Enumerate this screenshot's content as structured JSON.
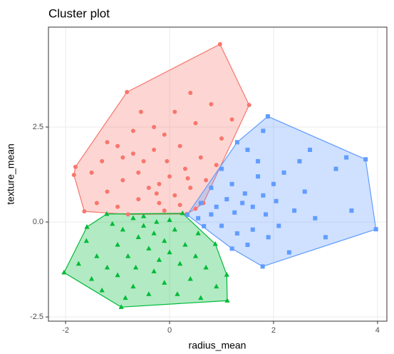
{
  "chart_data": {
    "type": "cluster",
    "title": "Cluster plot",
    "x_label": "radius_mean",
    "y_label": "texture_mean",
    "xlim": [
      -2.33,
      4.18
    ],
    "ylim": [
      -2.61,
      5.13
    ],
    "xticks": [
      -2,
      0,
      2,
      4
    ],
    "yticks": [
      -2.5,
      {
        "value": 0,
        "label": "0.0"
      },
      2.5
    ],
    "grid": true,
    "series": [
      {
        "color": "#F8766D",
        "shape": "circle",
        "x": [
          0.97,
          1.53,
          0.33,
          -1.64,
          -1.84,
          -1.81,
          -0.82,
          0.4,
          -1.2,
          -1.0,
          -0.7,
          -0.7,
          -0.3,
          -0.1,
          0.2,
          0.5,
          0.8,
          0.6,
          0.3,
          0.0,
          -0.2,
          -0.4,
          -0.6,
          -0.9,
          -1.2,
          -1.4,
          -1.0,
          -0.6,
          -0.2,
          0.1,
          0.4,
          0.7,
          0.9,
          -0.5,
          -0.3,
          -1.5,
          -0.1,
          0.2,
          -0.8,
          -1.3,
          0.65,
          1.0,
          -0.05,
          -0.55,
          -0.9,
          0.35,
          -0.25,
          0.5,
          1.2,
          0.1
        ],
        "y": [
          4.68,
          3.08,
          0.21,
          0.28,
          1.24,
          1.45,
          3.42,
          3.4,
          2.1,
          2.0,
          2.4,
          1.8,
          2.5,
          2.3,
          2.0,
          2.6,
          3.1,
          1.7,
          1.4,
          1.2,
          1.0,
          0.9,
          1.3,
          1.1,
          0.8,
          0.5,
          0.4,
          0.6,
          0.5,
          0.7,
          0.9,
          1.1,
          1.5,
          1.6,
          1.9,
          1.3,
          0.3,
          0.45,
          0.2,
          1.6,
          0.5,
          2.2,
          1.6,
          2.9,
          1.7,
          1.15,
          0.75,
          0.35,
          2.7,
          2.9
        ]
      },
      {
        "color": "#619CFF",
        "shape": "square",
        "x": [
          1.89,
          3.77,
          3.97,
          1.79,
          0.66,
          0.34,
          1.8,
          1.5,
          1.3,
          1.0,
          0.8,
          1.1,
          1.4,
          1.6,
          1.8,
          2.0,
          2.2,
          2.5,
          2.6,
          2.4,
          2.1,
          1.9,
          1.6,
          1.3,
          1.0,
          0.8,
          0.6,
          1.2,
          1.7,
          3.2,
          3.5,
          3.0,
          2.8,
          1.5,
          1.2,
          2.3,
          0.9,
          1.45,
          1.85,
          2.7,
          3.4,
          2.05,
          1.25,
          0.55,
          1.7
        ],
        "y": [
          2.78,
          1.65,
          -0.19,
          -1.17,
          -0.11,
          0.19,
          2.4,
          1.9,
          2.1,
          1.4,
          0.9,
          0.6,
          0.5,
          0.4,
          0.7,
          1.0,
          1.3,
          1.6,
          0.8,
          0.3,
          -0.1,
          -0.4,
          -0.2,
          -0.3,
          -0.1,
          0.2,
          0.5,
          1.0,
          1.2,
          1.4,
          0.3,
          -0.4,
          0.1,
          -0.6,
          -0.7,
          -0.8,
          0.4,
          0.75,
          0.2,
          1.9,
          1.7,
          0.55,
          0.25,
          0.1,
          1.6
        ]
      },
      {
        "color": "#00BA38",
        "shape": "triangle",
        "x": [
          -2.03,
          -1.59,
          -1.21,
          0.25,
          0.88,
          1.1,
          1.11,
          -0.93,
          -1.6,
          -1.4,
          -1.5,
          -1.2,
          -1.0,
          -0.9,
          -0.7,
          -0.5,
          -0.3,
          -0.1,
          0.1,
          0.3,
          0.5,
          0.7,
          0.9,
          0.4,
          0.2,
          0.0,
          -0.2,
          -0.4,
          -0.6,
          -0.8,
          -1.0,
          -0.7,
          -0.4,
          -0.1,
          0.6,
          -0.3,
          -1.3,
          -0.5,
          0.0,
          -1.1,
          -0.65,
          0.15,
          -0.85,
          0.55,
          -1.75,
          -0.25
        ],
        "y": [
          -1.33,
          -0.13,
          0.21,
          0.23,
          -0.58,
          -1.39,
          -2.07,
          -2.24,
          -0.5,
          -0.9,
          -1.5,
          -1.2,
          -0.6,
          -0.2,
          0.1,
          -0.1,
          -0.3,
          -0.5,
          -0.2,
          -0.6,
          -0.9,
          -1.2,
          -1.7,
          -1.5,
          -1.1,
          -0.8,
          -1.0,
          -0.7,
          -0.4,
          -0.9,
          -1.4,
          -1.7,
          -1.9,
          -1.6,
          -2.0,
          -1.3,
          -1.8,
          0.15,
          0.05,
          -0.05,
          -1.2,
          -1.9,
          -2.0,
          -0.3,
          -1.1,
          0.0
        ]
      }
    ]
  }
}
